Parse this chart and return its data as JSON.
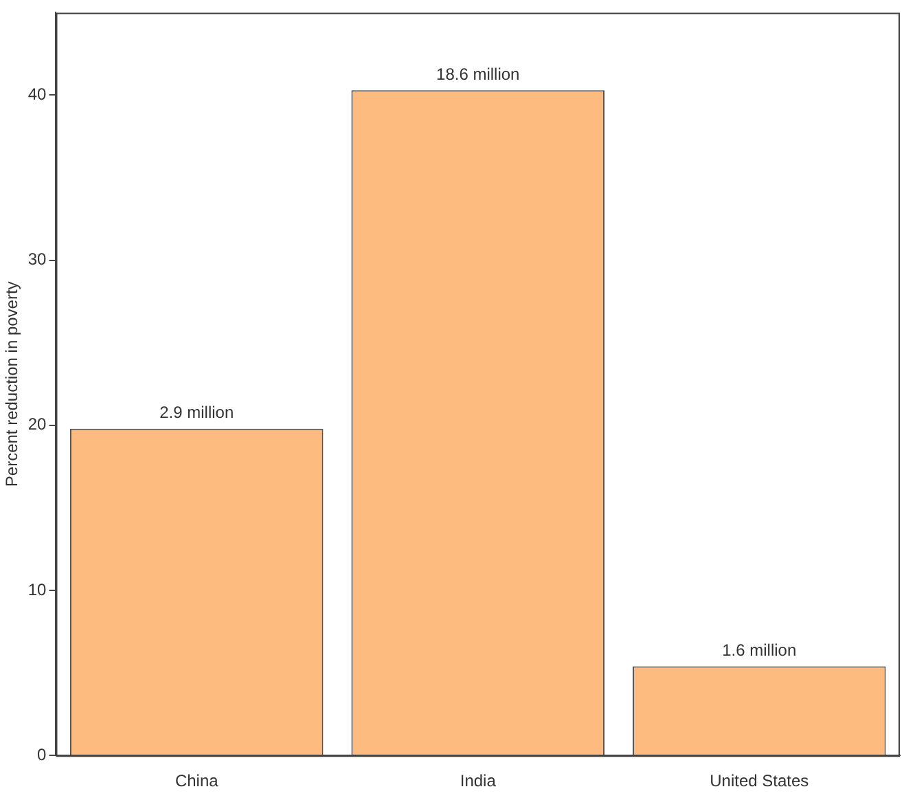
{
  "chart_data": {
    "type": "bar",
    "ylabel": "Percent reduction in poverty",
    "categories": [
      "China",
      "India",
      "United States"
    ],
    "values": [
      19.8,
      40.3,
      5.4
    ],
    "annotations": [
      {
        "text": "2.9 million",
        "x": "China",
        "y": 19.8
      },
      {
        "text": "18.6 million",
        "x": "India",
        "y": 40.3
      },
      {
        "text": "1.6 million",
        "x": "United States",
        "y": 5.4
      }
    ],
    "color": "#fdbb80",
    "ylim": [
      0,
      45
    ],
    "yticks": [
      0,
      10,
      20,
      30,
      40
    ],
    "grid": false,
    "legend": false
  }
}
